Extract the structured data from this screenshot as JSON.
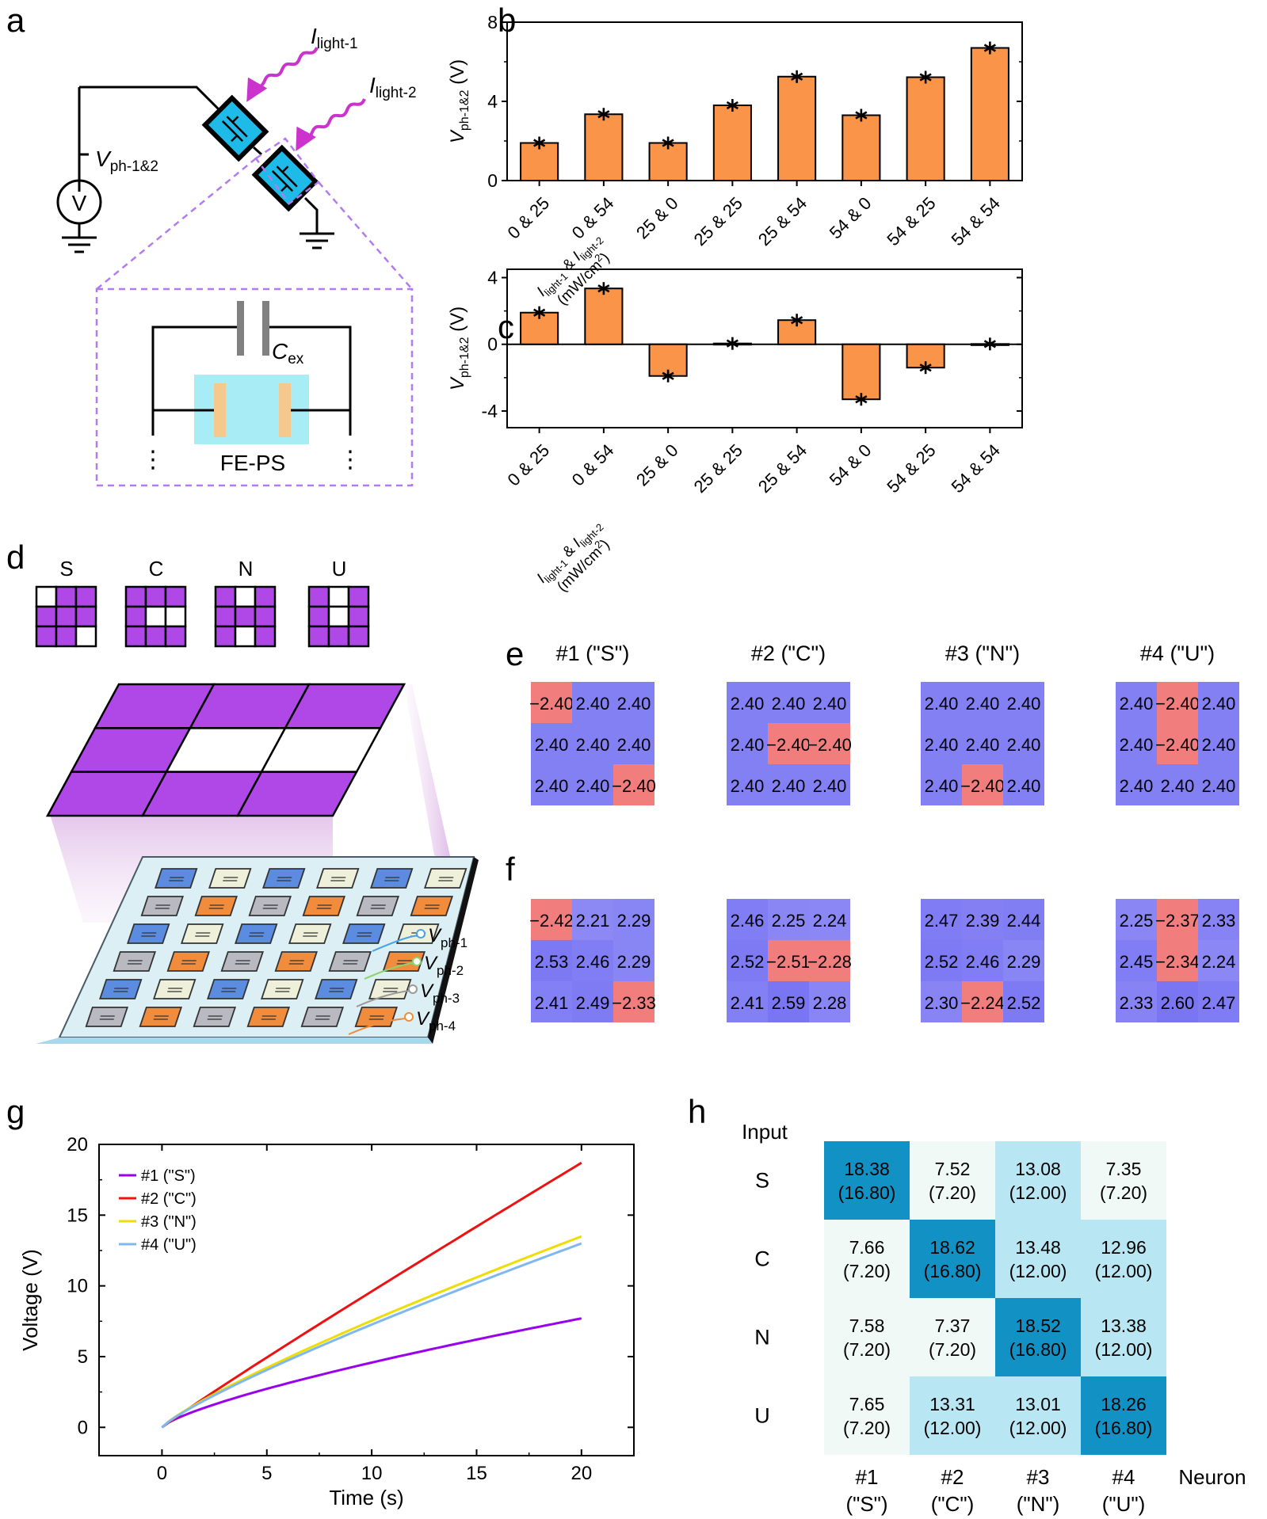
{
  "panels": {
    "a": "a",
    "b": "b",
    "c": "c",
    "d": "d",
    "e": "e",
    "f": "f",
    "g": "g",
    "h": "h"
  },
  "colors": {
    "bar": "#f99448",
    "magenta": "#cc33cc",
    "purple": "#b048e8",
    "dashed": "#b27cf0",
    "cyan": "#a8ecf6",
    "electrode": "#f5c98e",
    "heat_pos": "#7a76f3",
    "heat_neg": "#f27d7d",
    "h_dark": "#1291c4",
    "h_light": "#b8e6f2",
    "h_pale": "#f1f9f6"
  },
  "circuit": {
    "light1_main": "I",
    "light1_sub": "light-1",
    "light2_main": "I",
    "light2_sub": "light-2",
    "vph_main": "V",
    "vph_sub": "ph-1&2",
    "voltmeter": "V",
    "cex_main": "C",
    "cex_sub": "ex",
    "device": "FE-PS",
    "dots": "⋮"
  },
  "xaxis_label": {
    "l_main": "I",
    "l1_sub": "light-1",
    "amp": " & ",
    "l2_sub": "light-2",
    "unit_pre": "(mW/cm",
    "unit_sup": "2",
    "unit_post": ")"
  },
  "chart_data": [
    {
      "id": "b",
      "type": "bar",
      "categories": [
        "0 & 25",
        "0 & 54",
        "25 & 0",
        "25 & 25",
        "25 & 54",
        "54 & 0",
        "54 & 25",
        "54 & 54"
      ],
      "values": [
        1.9,
        3.35,
        1.9,
        3.8,
        5.25,
        3.3,
        5.22,
        6.7
      ],
      "ylabel_main": "V",
      "ylabel_sub": "ph-1&2",
      "ylabel_unit": " (V)",
      "ylim": [
        0,
        8
      ],
      "yticks": [
        "0",
        "4",
        "8"
      ],
      "marker": "*"
    },
    {
      "id": "c",
      "type": "bar",
      "categories": [
        "0 & 25",
        "0 & 54",
        "25 & 0",
        "25 & 25",
        "25 & 54",
        "54 & 0",
        "54 & 25",
        "54 & 54"
      ],
      "values": [
        1.9,
        3.35,
        -1.9,
        0.05,
        1.45,
        -3.3,
        -1.4,
        0.02
      ],
      "ylabel_main": "V",
      "ylabel_sub": "ph-1&2",
      "ylabel_unit": " (V)",
      "ylim": [
        -5,
        4.5
      ],
      "yticks": [
        "-4",
        "0",
        "4"
      ],
      "marker": "*"
    },
    {
      "id": "e",
      "type": "heatmap",
      "titles": [
        "#1 (\"S\")",
        "#2 (\"C\")",
        "#3 (\"N\")",
        "#4 (\"U\")"
      ],
      "cells": [
        [
          "−2.40",
          "2.40",
          "2.40",
          "2.40",
          "2.40",
          "2.40",
          "2.40",
          "2.40",
          "−2.40"
        ],
        [
          "2.40",
          "2.40",
          "2.40",
          "2.40",
          "−2.40",
          "−2.40",
          "2.40",
          "2.40",
          "2.40"
        ],
        [
          "2.40",
          "2.40",
          "2.40",
          "2.40",
          "2.40",
          "2.40",
          "2.40",
          "−2.40",
          "2.40"
        ],
        [
          "2.40",
          "−2.40",
          "2.40",
          "2.40",
          "−2.40",
          "2.40",
          "2.40",
          "2.40",
          "2.40"
        ]
      ]
    },
    {
      "id": "f",
      "type": "heatmap",
      "cells": [
        [
          "−2.42",
          "2.21",
          "2.29",
          "2.53",
          "2.46",
          "2.29",
          "2.41",
          "2.49",
          "−2.33"
        ],
        [
          "2.46",
          "2.25",
          "2.24",
          "2.52",
          "−2.51",
          "−2.28",
          "2.41",
          "2.59",
          "2.28"
        ],
        [
          "2.47",
          "2.39",
          "2.44",
          "2.52",
          "2.46",
          "2.29",
          "2.30",
          "−2.24",
          "2.52"
        ],
        [
          "2.25",
          "−2.37",
          "2.33",
          "2.45",
          "−2.34",
          "2.24",
          "2.33",
          "2.60",
          "2.47"
        ]
      ]
    },
    {
      "id": "g",
      "type": "line",
      "xlabel": "Time (s)",
      "ylabel": "Voltage (V)",
      "xlim": [
        -3,
        22.5
      ],
      "ylim": [
        -2,
        20
      ],
      "xticks": [
        "0",
        "5",
        "10",
        "15",
        "20"
      ],
      "yticks": [
        "0",
        "5",
        "10",
        "15",
        "20"
      ],
      "series": [
        {
          "name": "#1 (\"S\")",
          "color": "#9900ee",
          "final": 7.7,
          "curve": "slow"
        },
        {
          "name": "#2 (\"C\")",
          "color": "#ee1111",
          "final": 18.7,
          "curve": "near-linear"
        },
        {
          "name": "#3 (\"N\")",
          "color": "#eedd00",
          "final": 13.5,
          "curve": "medium"
        },
        {
          "name": "#4 (\"U\")",
          "color": "#7fb8f0",
          "final": 13.0,
          "curve": "medium"
        }
      ]
    },
    {
      "id": "h",
      "type": "table",
      "row_title": "Input",
      "col_title": "Neuron",
      "rows": [
        "S",
        "C",
        "N",
        "U"
      ],
      "cols": [
        [
          "#1",
          "(\"S\")"
        ],
        [
          "#2",
          "(\"C\")"
        ],
        [
          "#3",
          "(\"N\")"
        ],
        [
          "#4",
          "(\"U\")"
        ]
      ],
      "cells": [
        [
          [
            "18.38",
            "(16.80)"
          ],
          [
            "7.52",
            "(7.20)"
          ],
          [
            "13.08",
            "(12.00)"
          ],
          [
            "7.35",
            "(7.20)"
          ]
        ],
        [
          [
            "7.66",
            "(7.20)"
          ],
          [
            "18.62",
            "(16.80)"
          ],
          [
            "13.48",
            "(12.00)"
          ],
          [
            "12.96",
            "(12.00)"
          ]
        ],
        [
          [
            "7.58",
            "(7.20)"
          ],
          [
            "7.37",
            "(7.20)"
          ],
          [
            "18.52",
            "(16.80)"
          ],
          [
            "13.38",
            "(12.00)"
          ]
        ],
        [
          [
            "7.65",
            "(7.20)"
          ],
          [
            "13.31",
            "(12.00)"
          ],
          [
            "13.01",
            "(12.00)"
          ],
          [
            "18.26",
            "(16.80)"
          ]
        ]
      ]
    }
  ],
  "letters": {
    "titles": [
      "S",
      "C",
      "N",
      "U"
    ],
    "white_cells": [
      [
        0,
        8
      ],
      [
        4,
        5
      ],
      [
        1,
        7
      ],
      [
        1,
        4
      ]
    ]
  },
  "array": {
    "labels": [
      {
        "main": "V",
        "sub": "ph-1"
      },
      {
        "main": "V",
        "sub": "ph-2"
      },
      {
        "main": "V",
        "sub": "ph-3"
      },
      {
        "main": "V",
        "sub": "ph-4"
      }
    ]
  }
}
